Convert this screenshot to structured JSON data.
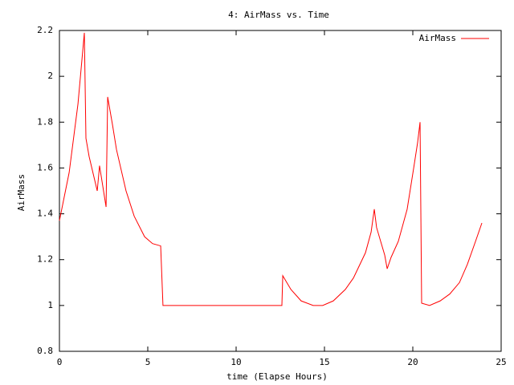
{
  "chart_data": {
    "type": "line",
    "title": "4: AirMass vs. Time",
    "x_label": "time (Elapse Hours)",
    "y_label": "AirMass",
    "xlim": [
      0,
      25
    ],
    "xticks": [
      0,
      5,
      10,
      15,
      20,
      25
    ],
    "ylim": [
      0.8,
      2.2
    ],
    "yticks": [
      0.8,
      1,
      1.2,
      1.4,
      1.6,
      1.8,
      2,
      2.2
    ],
    "legend": "top-right",
    "x": [
      0,
      0.55,
      1.05,
      1.41,
      1.5,
      1.68,
      2.14,
      2.27,
      2.64,
      2.73,
      3.0,
      3.23,
      3.77,
      4.23,
      4.82,
      5.27,
      5.73,
      5.86,
      12.59,
      12.64,
      13.1,
      13.68,
      14.36,
      14.9,
      15.5,
      16.18,
      16.64,
      17.32,
      17.64,
      17.82,
      17.95,
      18.18,
      18.41,
      18.55,
      18.77,
      19.18,
      19.68,
      20.05,
      20.27,
      20.41,
      20.5,
      20.95,
      21.55,
      22.09,
      22.64,
      23.09,
      23.55,
      23.91
    ],
    "series": [
      {
        "name": "AirMass",
        "color": "#ff0000",
        "values": [
          1.37,
          1.58,
          1.88,
          2.19,
          1.73,
          1.65,
          1.5,
          1.61,
          1.43,
          1.91,
          1.79,
          1.68,
          1.5,
          1.39,
          1.3,
          1.27,
          1.26,
          1.0,
          1.0,
          1.13,
          1.07,
          1.02,
          1.0,
          1.0,
          1.02,
          1.07,
          1.12,
          1.23,
          1.32,
          1.42,
          1.34,
          1.28,
          1.22,
          1.16,
          1.21,
          1.28,
          1.42,
          1.6,
          1.71,
          1.8,
          1.01,
          1.0,
          1.02,
          1.05,
          1.1,
          1.18,
          1.28,
          1.36
        ]
      }
    ]
  }
}
